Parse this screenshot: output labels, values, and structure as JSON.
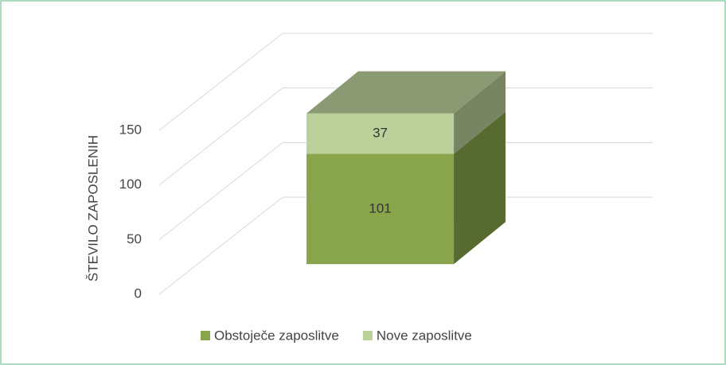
{
  "chart_data": {
    "type": "bar",
    "stacked": true,
    "three_d": true,
    "y_label": "ŠTEVILO ZAPOSLENIH",
    "categories": [
      null
    ],
    "series": [
      {
        "name": "Obstoječe zaposlitve",
        "color": "#88a54b",
        "values": [
          101
        ]
      },
      {
        "name": "Nove zaposlitve",
        "color": "#bcd09a",
        "values": [
          37
        ]
      }
    ],
    "ylim": [
      0,
      150
    ],
    "yticks": [
      0,
      50,
      100,
      150
    ],
    "grid": true,
    "legend": "bottom"
  }
}
